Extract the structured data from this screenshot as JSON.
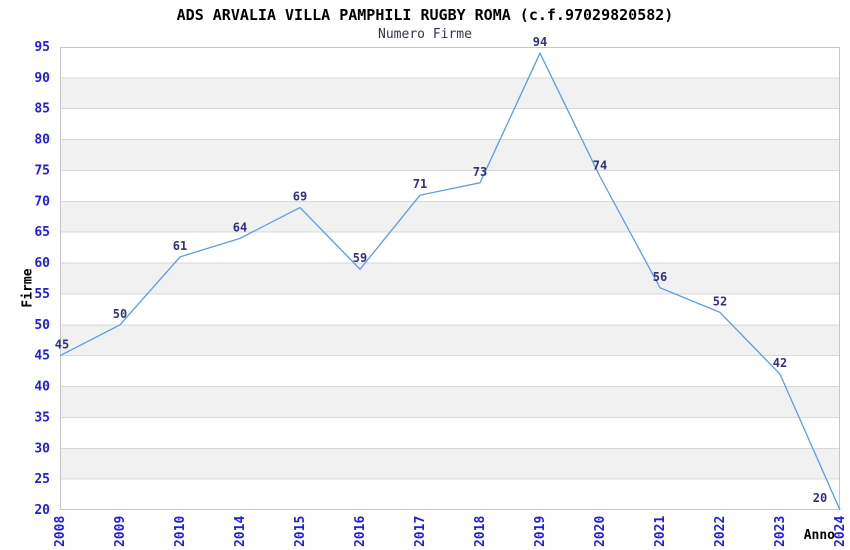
{
  "header": {
    "title": "ADS ARVALIA VILLA PAMPHILI RUGBY ROMA (c.f.97029820582)",
    "subtitle": "Numero Firme"
  },
  "chart_data": {
    "type": "line",
    "title": "ADS ARVALIA VILLA PAMPHILI RUGBY ROMA (c.f.97029820582)",
    "subtitle": "Numero Firme",
    "xlabel": "Anno",
    "ylabel": "Firme",
    "categories": [
      "2008",
      "2009",
      "2010",
      "2014",
      "2015",
      "2016",
      "2017",
      "2018",
      "2019",
      "2020",
      "2021",
      "2022",
      "2023",
      "2024"
    ],
    "values": [
      45,
      50,
      61,
      64,
      69,
      59,
      71,
      73,
      94,
      74,
      56,
      52,
      42,
      20
    ],
    "ylim": [
      20,
      95
    ],
    "ytick_step": 5,
    "grid": true,
    "alternating_bands": true,
    "legend": "none",
    "colors": {
      "line": "#5e9ce2",
      "value_label": "#31317d",
      "tick_label": "#2020d8",
      "band": "#f1f1f1",
      "gridline": "#d8d8d8",
      "plot_border": "#c6c6c6",
      "title": "#000000",
      "subtitle": "#33334d",
      "axis_title": "#000000",
      "background": "#ffffff"
    }
  }
}
